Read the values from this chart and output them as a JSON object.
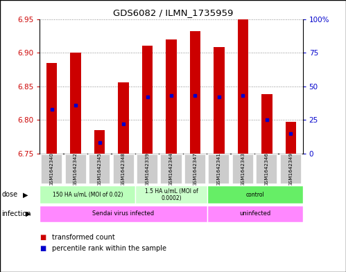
{
  "title": "GDS6082 / ILMN_1735959",
  "samples": [
    "GSM1642340",
    "GSM1642342",
    "GSM1642345",
    "GSM1642348",
    "GSM1642339",
    "GSM1642344",
    "GSM1642347",
    "GSM1642341",
    "GSM1642343",
    "GSM1642346",
    "GSM1642349"
  ],
  "transformed_counts": [
    6.885,
    6.9,
    6.785,
    6.856,
    6.91,
    6.92,
    6.932,
    6.908,
    6.95,
    6.838,
    6.797
  ],
  "percentile_ranks": [
    33,
    36,
    8,
    22,
    42,
    43,
    43,
    42,
    43,
    25,
    15
  ],
  "ylim_left": [
    6.75,
    6.95
  ],
  "ylim_right": [
    0,
    100
  ],
  "yticks_left": [
    6.75,
    6.8,
    6.85,
    6.9,
    6.95
  ],
  "yticks_right": [
    0,
    25,
    50,
    75,
    100
  ],
  "bar_color": "#cc0000",
  "dot_color": "#0000cc",
  "bar_bottom": 6.75,
  "dose_groups": [
    {
      "label": "150 HA u/mL (MOI of 0.02)",
      "start": 0,
      "end": 4,
      "color": "#bbffbb"
    },
    {
      "label": "1.5 HA u/mL (MOI of\n0.0002)",
      "start": 4,
      "end": 7,
      "color": "#ccffcc"
    },
    {
      "label": "control",
      "start": 7,
      "end": 11,
      "color": "#66ee66"
    }
  ],
  "infection_groups": [
    {
      "label": "Sendai virus infected",
      "start": 0,
      "end": 7,
      "color": "#ff88ff"
    },
    {
      "label": "uninfected",
      "start": 7,
      "end": 11,
      "color": "#ff88ff"
    }
  ],
  "grid_color": "#888888",
  "axis_color_left": "#cc0000",
  "axis_color_right": "#0000cc",
  "sample_box_color": "#cccccc",
  "border_color": "#000000"
}
